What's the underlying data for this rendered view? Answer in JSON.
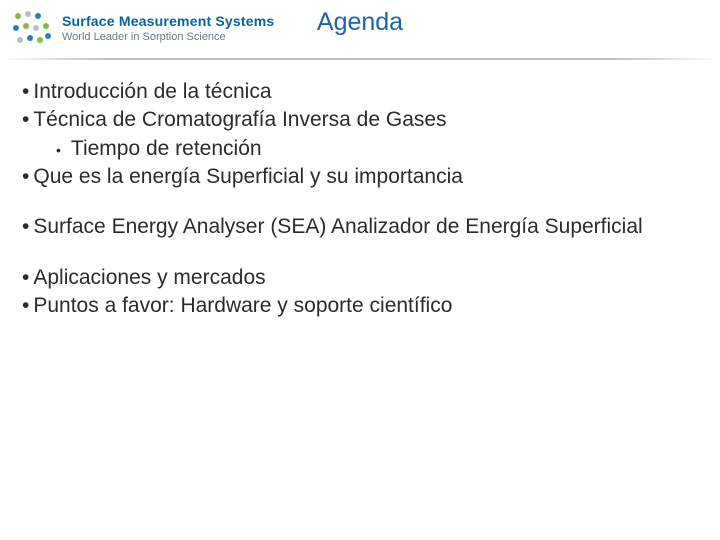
{
  "header": {
    "brand_line1": "Surface Measurement Systems",
    "brand_line2": "World Leader in Sorption Science",
    "brand_line1_color": "#0a62a5",
    "brand_line2_color": "#6b7a86",
    "brand_line1_fontsize": 14,
    "brand_line2_fontsize": 11,
    "title": "Agenda",
    "title_color": "#1f63a7",
    "title_fontsize": 25,
    "logo_dot_colors": {
      "green": "#7fbf3f",
      "blue": "#2a7fbf",
      "grey": "#b8c0c6"
    }
  },
  "body": {
    "text_color": "#2b2b2b",
    "fontsize": 21,
    "blocks": [
      {
        "items": [
          {
            "level": 0,
            "text": "Introducción de la técnica"
          },
          {
            "level": 0,
            "text": "Técnica de Cromatografía Inversa de Gases"
          },
          {
            "level": 1,
            "text": "Tiempo de retención"
          },
          {
            "level": 0,
            "text": "Que es la energía Superficial y su importancia"
          }
        ]
      },
      {
        "items": [
          {
            "level": 0,
            "text": "Surface Energy Analyser (SEA) Analizador de Energía Superficial"
          }
        ]
      },
      {
        "items": [
          {
            "level": 0,
            "text": "Aplicaciones y mercados"
          },
          {
            "level": 0,
            "text": "Puntos a favor: Hardware y soporte científico"
          }
        ]
      }
    ]
  }
}
